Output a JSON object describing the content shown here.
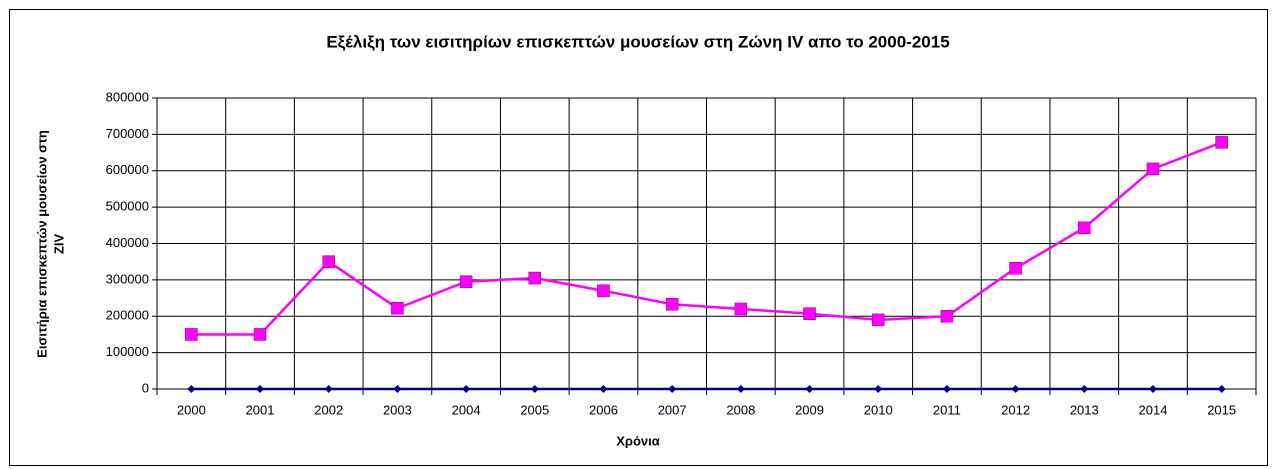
{
  "chart_data": {
    "type": "line",
    "title": "Εξέλιξη των εισιτηρίων επισκεπτών μουσείων στη Ζώνη IV απο το 2000-2015",
    "xlabel": "Χρόνια",
    "ylabel": [
      "Εισιτήρια επισκεπτών μουσείων στη",
      "ZIV"
    ],
    "categories": [
      "2000",
      "2001",
      "2002",
      "2003",
      "2004",
      "2005",
      "2006",
      "2007",
      "2008",
      "2009",
      "2010",
      "2011",
      "2012",
      "2013",
      "2014",
      "2015"
    ],
    "series": [
      {
        "color": "#ff00ff",
        "marker": "square",
        "values": [
          150000,
          150000,
          350000,
          222000,
          295000,
          305000,
          270000,
          233000,
          220000,
          207000,
          190000,
          200000,
          332000,
          443000,
          605000,
          678000
        ]
      },
      {
        "color": "#000080",
        "marker": "diamond",
        "values": [
          0,
          0,
          0,
          0,
          0,
          0,
          0,
          0,
          0,
          0,
          0,
          0,
          0,
          0,
          0,
          0
        ]
      }
    ],
    "ylim": [
      0,
      800000
    ],
    "yticks": [
      0,
      100000,
      200000,
      300000,
      400000,
      500000,
      600000,
      700000,
      800000
    ],
    "grid": true
  }
}
